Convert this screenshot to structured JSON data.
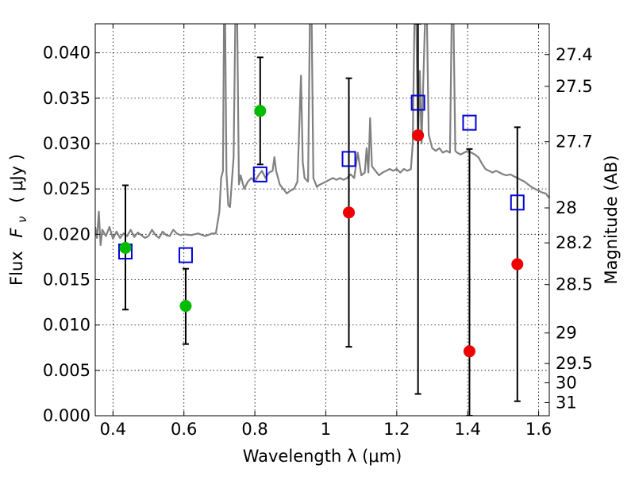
{
  "chart_data": {
    "type": "scatter",
    "xlabel": "Wavelength  λ (μm)",
    "ylabel_parts": [
      "Flux",
      "F",
      "ν",
      "( μJy )"
    ],
    "y2label": "Magnitude (AB)",
    "xlim": [
      0.35,
      1.63
    ],
    "ylim": [
      0.0,
      0.0432
    ],
    "x_ticks": [
      {
        "value": 0.4,
        "label": "0.4"
      },
      {
        "value": 0.6,
        "label": "0.6"
      },
      {
        "value": 0.8,
        "label": "0.8"
      },
      {
        "value": 1.0,
        "label": "1"
      },
      {
        "value": 1.2,
        "label": "1.2"
      },
      {
        "value": 1.4,
        "label": "1.4"
      },
      {
        "value": 1.6,
        "label": "1.6"
      }
    ],
    "y_ticks": [
      {
        "value": 0.0,
        "label": "0.000"
      },
      {
        "value": 0.005,
        "label": "0.005"
      },
      {
        "value": 0.01,
        "label": "0.010"
      },
      {
        "value": 0.015,
        "label": "0.015"
      },
      {
        "value": 0.02,
        "label": "0.020"
      },
      {
        "value": 0.025,
        "label": "0.025"
      },
      {
        "value": 0.03,
        "label": "0.030"
      },
      {
        "value": 0.035,
        "label": "0.035"
      },
      {
        "value": 0.04,
        "label": "0.040"
      }
    ],
    "mag_ticks": [
      {
        "value": 27.4,
        "label": "27.4"
      },
      {
        "value": 27.5,
        "label": "27.5"
      },
      {
        "value": 27.7,
        "label": "27.7"
      },
      {
        "value": 28.0,
        "label": "28"
      },
      {
        "value": 28.2,
        "label": "28.2"
      },
      {
        "value": 28.5,
        "label": "28.5"
      },
      {
        "value": 29.0,
        "label": "29"
      },
      {
        "value": 29.5,
        "label": "29.5"
      },
      {
        "value": 30.0,
        "label": "30"
      },
      {
        "value": 31.0,
        "label": "31"
      }
    ],
    "grid": true,
    "colors": {
      "spectrum": "#808080",
      "green_points": "#00bb00",
      "red_points": "#ee0000",
      "model_boxes": "#0000dd",
      "error_bars": "#000000"
    },
    "spectrum": [
      [
        0.35,
        0.0208
      ],
      [
        0.355,
        0.0196
      ],
      [
        0.36,
        0.0225
      ],
      [
        0.365,
        0.0188
      ],
      [
        0.37,
        0.0205
      ],
      [
        0.38,
        0.0198
      ],
      [
        0.39,
        0.0208
      ],
      [
        0.4,
        0.0195
      ],
      [
        0.41,
        0.0203
      ],
      [
        0.42,
        0.0196
      ],
      [
        0.43,
        0.0201
      ],
      [
        0.44,
        0.0198
      ],
      [
        0.45,
        0.0205
      ],
      [
        0.46,
        0.0197
      ],
      [
        0.47,
        0.0202
      ],
      [
        0.48,
        0.0199
      ],
      [
        0.49,
        0.0196
      ],
      [
        0.5,
        0.0198
      ],
      [
        0.51,
        0.0205
      ],
      [
        0.52,
        0.0199
      ],
      [
        0.53,
        0.0196
      ],
      [
        0.54,
        0.0203
      ],
      [
        0.55,
        0.0199
      ],
      [
        0.56,
        0.0198
      ],
      [
        0.57,
        0.0205
      ],
      [
        0.58,
        0.0201
      ],
      [
        0.59,
        0.0199
      ],
      [
        0.6,
        0.02
      ],
      [
        0.62,
        0.0199
      ],
      [
        0.64,
        0.0201
      ],
      [
        0.66,
        0.0198
      ],
      [
        0.68,
        0.0201
      ],
      [
        0.69,
        0.0201
      ],
      [
        0.7,
        0.0225
      ],
      [
        0.705,
        0.0262
      ],
      [
        0.71,
        0.027
      ],
      [
        0.713,
        0.044
      ],
      [
        0.716,
        0.044
      ],
      [
        0.72,
        0.0268
      ],
      [
        0.725,
        0.0232
      ],
      [
        0.73,
        0.023
      ],
      [
        0.74,
        0.0285
      ],
      [
        0.745,
        0.044
      ],
      [
        0.75,
        0.044
      ],
      [
        0.755,
        0.0255
      ],
      [
        0.76,
        0.0265
      ],
      [
        0.77,
        0.025
      ],
      [
        0.78,
        0.0258
      ],
      [
        0.79,
        0.0262
      ],
      [
        0.8,
        0.0258
      ],
      [
        0.81,
        0.0265
      ],
      [
        0.82,
        0.027
      ],
      [
        0.83,
        0.0262
      ],
      [
        0.84,
        0.0268
      ],
      [
        0.85,
        0.027
      ],
      [
        0.855,
        0.0285
      ],
      [
        0.86,
        0.027
      ],
      [
        0.87,
        0.0255
      ],
      [
        0.88,
        0.025
      ],
      [
        0.89,
        0.0245
      ],
      [
        0.9,
        0.0248
      ],
      [
        0.91,
        0.025
      ],
      [
        0.92,
        0.0258
      ],
      [
        0.93,
        0.0375
      ],
      [
        0.935,
        0.028
      ],
      [
        0.94,
        0.0262
      ],
      [
        0.95,
        0.0258
      ],
      [
        0.955,
        0.044
      ],
      [
        0.96,
        0.044
      ],
      [
        0.965,
        0.0262
      ],
      [
        0.975,
        0.0252
      ],
      [
        0.98,
        0.0254
      ],
      [
        0.99,
        0.0256
      ],
      [
        1.0,
        0.0258
      ],
      [
        1.01,
        0.026
      ],
      [
        1.02,
        0.0262
      ],
      [
        1.03,
        0.026
      ],
      [
        1.04,
        0.0262
      ],
      [
        1.05,
        0.026
      ],
      [
        1.06,
        0.0262
      ],
      [
        1.07,
        0.0266
      ],
      [
        1.08,
        0.0262
      ],
      [
        1.09,
        0.029
      ],
      [
        1.1,
        0.0265
      ],
      [
        1.11,
        0.0268
      ],
      [
        1.115,
        0.0295
      ],
      [
        1.12,
        0.0268
      ],
      [
        1.125,
        0.0328
      ],
      [
        1.13,
        0.0275
      ],
      [
        1.14,
        0.027
      ],
      [
        1.15,
        0.0265
      ],
      [
        1.16,
        0.0268
      ],
      [
        1.17,
        0.027
      ],
      [
        1.18,
        0.0272
      ],
      [
        1.19,
        0.027
      ],
      [
        1.2,
        0.0272
      ],
      [
        1.21,
        0.0268
      ],
      [
        1.22,
        0.0272
      ],
      [
        1.23,
        0.027
      ],
      [
        1.24,
        0.0272
      ],
      [
        1.245,
        0.03
      ],
      [
        1.25,
        0.044
      ],
      [
        1.255,
        0.044
      ],
      [
        1.26,
        0.03
      ],
      [
        1.265,
        0.038
      ],
      [
        1.27,
        0.03
      ],
      [
        1.28,
        0.044
      ],
      [
        1.285,
        0.044
      ],
      [
        1.29,
        0.031
      ],
      [
        1.3,
        0.0295
      ],
      [
        1.31,
        0.0292
      ],
      [
        1.32,
        0.0295
      ],
      [
        1.33,
        0.029
      ],
      [
        1.34,
        0.0292
      ],
      [
        1.35,
        0.029
      ],
      [
        1.355,
        0.044
      ],
      [
        1.36,
        0.044
      ],
      [
        1.365,
        0.0292
      ],
      [
        1.37,
        0.029
      ],
      [
        1.38,
        0.0288
      ],
      [
        1.39,
        0.029
      ],
      [
        1.4,
        0.0292
      ],
      [
        1.41,
        0.029
      ],
      [
        1.42,
        0.0288
      ],
      [
        1.43,
        0.0285
      ],
      [
        1.44,
        0.0278
      ],
      [
        1.45,
        0.0272
      ],
      [
        1.46,
        0.027
      ],
      [
        1.47,
        0.0268
      ],
      [
        1.48,
        0.027
      ],
      [
        1.49,
        0.0268
      ],
      [
        1.5,
        0.0266
      ],
      [
        1.51,
        0.0265
      ],
      [
        1.52,
        0.0266
      ],
      [
        1.53,
        0.0264
      ],
      [
        1.54,
        0.0262
      ],
      [
        1.55,
        0.026
      ],
      [
        1.56,
        0.0258
      ],
      [
        1.57,
        0.0255
      ],
      [
        1.58,
        0.0252
      ],
      [
        1.59,
        0.025
      ],
      [
        1.6,
        0.0248
      ],
      [
        1.61,
        0.0246
      ],
      [
        1.62,
        0.0245
      ],
      [
        1.63,
        0.024
      ]
    ],
    "photometry_points": [
      {
        "x": 0.435,
        "y": 0.0185,
        "yerr_low": 0.0117,
        "yerr_high": 0.0254,
        "color": "green"
      },
      {
        "x": 0.605,
        "y": 0.0121,
        "yerr_low": 0.0079,
        "yerr_high": 0.0162,
        "color": "green"
      },
      {
        "x": 0.815,
        "y": 0.0336,
        "yerr_low": 0.0277,
        "yerr_high": 0.0395,
        "color": "green"
      },
      {
        "x": 1.065,
        "y": 0.0224,
        "yerr_low": 0.0076,
        "yerr_high": 0.0372,
        "color": "red"
      },
      {
        "x": 1.26,
        "y": 0.0309,
        "yerr_low": 0.0024,
        "yerr_high": 0.0432,
        "color": "red"
      },
      {
        "x": 1.405,
        "y": 0.0071,
        "yerr_low": 0.0,
        "yerr_high": 0.0294,
        "color": "red"
      },
      {
        "x": 1.54,
        "y": 0.0167,
        "yerr_low": 0.0016,
        "yerr_high": 0.0318,
        "color": "red"
      }
    ],
    "model_fluxes": [
      {
        "x": 0.435,
        "y": 0.0181
      },
      {
        "x": 0.605,
        "y": 0.0177
      },
      {
        "x": 0.815,
        "y": 0.0266
      },
      {
        "x": 1.065,
        "y": 0.0283
      },
      {
        "x": 1.26,
        "y": 0.0345
      },
      {
        "x": 1.405,
        "y": 0.0323
      },
      {
        "x": 1.54,
        "y": 0.0235
      }
    ]
  }
}
